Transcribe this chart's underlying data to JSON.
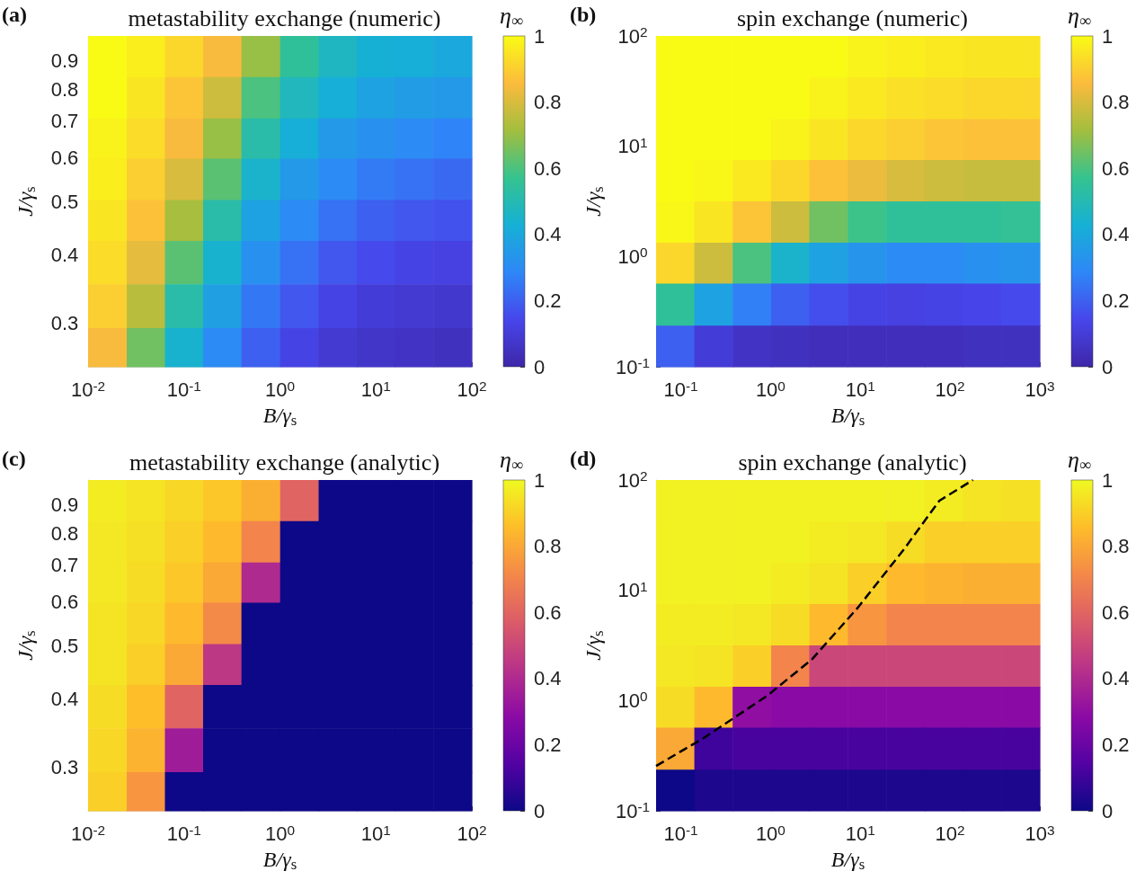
{
  "chart_data": [
    {
      "type": "heatmap",
      "title": "metastability exchange (numeric)",
      "xlabel": "B/γ$_{s}$",
      "ylabel": "J/γ$_{s}$",
      "clabel": "η$_{∞}$",
      "annotations": [
        "(a)"
      ],
      "log": "xy",
      "grid": false,
      "colors": [
        "#3e26a8",
        "#4746eb",
        "#2e87f7",
        "#16b0d5",
        "#35c38f",
        "#a3be3e",
        "#fcbb3d",
        "#f9fb15"
      ],
      "x": [
        0.016,
        0.04,
        0.1,
        0.25,
        0.63,
        1.6,
        4,
        10,
        25,
        63
      ],
      "y": [
        0.92,
        0.77,
        0.65,
        0.55,
        0.46,
        0.39,
        0.32,
        0.27
      ],
      "xlim": [
        0.01,
        100
      ],
      "xticks": [
        {
          "value": 0.01,
          "label": "10$^{-2}$"
        },
        {
          "value": 0.1,
          "label": "10$^{-1}$"
        },
        {
          "value": 1,
          "label": "10$^{0}$"
        },
        {
          "value": 10,
          "label": "10$^{1}$"
        },
        {
          "value": 100,
          "label": "10$^{2}$"
        }
      ],
      "ylim": [
        0.25,
        1
      ],
      "yticks": [
        0.3,
        0.4,
        0.5,
        0.6,
        0.7,
        0.8,
        0.9
      ],
      "clim": [
        0,
        1
      ],
      "cticks": [
        0,
        0.2,
        0.4,
        0.6,
        0.8,
        1
      ],
      "cells": [
        [
          1,
          0.97,
          0.92,
          0.85,
          0.7,
          0.55,
          0.47,
          0.43,
          0.42,
          0.4
        ],
        [
          1,
          0.95,
          0.88,
          0.78,
          0.6,
          0.48,
          0.42,
          0.38,
          0.36,
          0.35
        ],
        [
          0.98,
          0.93,
          0.85,
          0.7,
          0.52,
          0.42,
          0.35,
          0.32,
          0.3,
          0.28
        ],
        [
          0.97,
          0.9,
          0.8,
          0.62,
          0.45,
          0.35,
          0.3,
          0.26,
          0.24,
          0.22
        ],
        [
          0.95,
          0.87,
          0.72,
          0.52,
          0.38,
          0.3,
          0.24,
          0.2,
          0.18,
          0.17
        ],
        [
          0.93,
          0.82,
          0.62,
          0.44,
          0.32,
          0.24,
          0.18,
          0.15,
          0.13,
          0.12
        ],
        [
          0.9,
          0.75,
          0.52,
          0.37,
          0.25,
          0.18,
          0.13,
          0.1,
          0.09,
          0.08
        ],
        [
          0.85,
          0.65,
          0.44,
          0.3,
          0.2,
          0.13,
          0.09,
          0.07,
          0.06,
          0.05
        ]
      ]
    },
    {
      "type": "heatmap",
      "title": "spin exchange (numeric)",
      "xlabel": "B/γ$_{s}$",
      "ylabel": "J/γ$_{s}$",
      "clabel": "η$_{∞}$",
      "annotations": [
        "(b)"
      ],
      "log": "xy",
      "grid": false,
      "colors": [
        "#3e26a8",
        "#4746eb",
        "#2e87f7",
        "#16b0d5",
        "#35c38f",
        "#a3be3e",
        "#fcbb3d",
        "#f9fb15"
      ],
      "x": [
        0.087,
        0.23,
        0.62,
        1.66,
        4.4,
        11.9,
        32,
        85,
        229,
        611
      ],
      "y": [
        65,
        27,
        11.5,
        4.9,
        2.05,
        0.87,
        0.37,
        0.15
      ],
      "xlim": [
        0.053,
        1000
      ],
      "xticks": [
        {
          "value": 0.1,
          "label": "10$^{-1}$"
        },
        {
          "value": 1,
          "label": "10$^{0}$"
        },
        {
          "value": 10,
          "label": "10$^{1}$"
        },
        {
          "value": 100,
          "label": "10$^{2}$"
        },
        {
          "value": 1000,
          "label": "10$^{3}$"
        }
      ],
      "ylim": [
        0.1,
        100
      ],
      "yticks": [
        {
          "value": 0.1,
          "label": "10$^{-1}$"
        },
        {
          "value": 1,
          "label": "10$^{0}$"
        },
        {
          "value": 10,
          "label": "10$^{1}$"
        },
        {
          "value": 100,
          "label": "10$^{2}$"
        }
      ],
      "clim": [
        0,
        1
      ],
      "cticks": [
        0,
        0.2,
        0.4,
        0.6,
        0.8,
        1
      ],
      "cells": [
        [
          1,
          1,
          1,
          1,
          1,
          0.98,
          0.97,
          0.96,
          0.95,
          0.95
        ],
        [
          1,
          1,
          1,
          1,
          0.98,
          0.96,
          0.94,
          0.93,
          0.92,
          0.92
        ],
        [
          1,
          1,
          1,
          0.98,
          0.95,
          0.92,
          0.9,
          0.88,
          0.87,
          0.87
        ],
        [
          1,
          0.99,
          0.96,
          0.92,
          0.87,
          0.83,
          0.8,
          0.78,
          0.77,
          0.77
        ],
        [
          0.99,
          0.95,
          0.88,
          0.78,
          0.65,
          0.58,
          0.55,
          0.55,
          0.55,
          0.56
        ],
        [
          0.92,
          0.78,
          0.6,
          0.45,
          0.38,
          0.33,
          0.3,
          0.3,
          0.32,
          0.33
        ],
        [
          0.55,
          0.38,
          0.27,
          0.2,
          0.16,
          0.13,
          0.12,
          0.13,
          0.14,
          0.15
        ],
        [
          0.2,
          0.1,
          0.06,
          0.05,
          0.04,
          0.04,
          0.04,
          0.04,
          0.05,
          0.05
        ]
      ]
    },
    {
      "type": "heatmap",
      "title": "metastability exchange (analytic)",
      "xlabel": "B/γ$_{s}$",
      "ylabel": "J/γ$_{s}$",
      "clabel": "η$_{∞}$",
      "annotations": [
        "(c)"
      ],
      "log": "xy",
      "grid": false,
      "colors": [
        "#0d0887",
        "#5302a3",
        "#8b0aa5",
        "#b83289",
        "#db5c68",
        "#f48849",
        "#febd2a",
        "#f0f921"
      ],
      "x": [
        0.016,
        0.04,
        0.1,
        0.25,
        0.63,
        1.6,
        4,
        10,
        25,
        63
      ],
      "y": [
        0.92,
        0.77,
        0.65,
        0.55,
        0.46,
        0.39,
        0.32,
        0.27
      ],
      "xlim": [
        0.01,
        100
      ],
      "xticks": [
        {
          "value": 0.01,
          "label": "10$^{-2}$"
        },
        {
          "value": 0.1,
          "label": "10$^{-1}$"
        },
        {
          "value": 1,
          "label": "10$^{0}$"
        },
        {
          "value": 10,
          "label": "10$^{1}$"
        },
        {
          "value": 100,
          "label": "10$^{2}$"
        }
      ],
      "ylim": [
        0.25,
        1
      ],
      "yticks": [
        0.3,
        0.4,
        0.5,
        0.6,
        0.7,
        0.8,
        0.9
      ],
      "clim": [
        0,
        1
      ],
      "cticks": [
        0,
        0.2,
        0.4,
        0.6,
        0.8,
        1
      ],
      "cells": [
        [
          0.97,
          0.95,
          0.92,
          0.88,
          0.82,
          0.6,
          0,
          0,
          0,
          0
        ],
        [
          0.96,
          0.94,
          0.9,
          0.85,
          0.7,
          0,
          0,
          0,
          0,
          0
        ],
        [
          0.96,
          0.93,
          0.88,
          0.8,
          0.4,
          0,
          0,
          0,
          0,
          0
        ],
        [
          0.95,
          0.92,
          0.85,
          0.72,
          0,
          0,
          0,
          0,
          0,
          0
        ],
        [
          0.95,
          0.9,
          0.8,
          0.45,
          0,
          0,
          0,
          0,
          0,
          0
        ],
        [
          0.93,
          0.86,
          0.6,
          0,
          0,
          0,
          0,
          0,
          0,
          0
        ],
        [
          0.92,
          0.83,
          0.35,
          0,
          0,
          0,
          0,
          0,
          0,
          0
        ],
        [
          0.9,
          0.75,
          0,
          0,
          0,
          0,
          0,
          0,
          0,
          0
        ]
      ]
    },
    {
      "type": "heatmap",
      "title": "spin exchange (analytic)",
      "xlabel": "B/γ$_{s}$",
      "ylabel": "J/γ$_{s}$",
      "clabel": "η$_{∞}$",
      "annotations": [
        "(d)"
      ],
      "log": "xy",
      "grid": false,
      "colors": [
        "#0d0887",
        "#5302a3",
        "#8b0aa5",
        "#b83289",
        "#db5c68",
        "#f48849",
        "#febd2a",
        "#f0f921"
      ],
      "x": [
        0.087,
        0.23,
        0.62,
        1.66,
        4.4,
        11.9,
        32,
        85,
        229,
        611
      ],
      "y": [
        65,
        27,
        11.5,
        4.9,
        2.05,
        0.87,
        0.37,
        0.15
      ],
      "xlim": [
        0.053,
        1000
      ],
      "xticks": [
        {
          "value": 0.1,
          "label": "10$^{-1}$"
        },
        {
          "value": 1,
          "label": "10$^{0}$"
        },
        {
          "value": 10,
          "label": "10$^{1}$"
        },
        {
          "value": 100,
          "label": "10$^{2}$"
        },
        {
          "value": 1000,
          "label": "10$^{3}$"
        }
      ],
      "ylim": [
        0.1,
        100
      ],
      "yticks": [
        {
          "value": 0.1,
          "label": "10$^{-1}$"
        },
        {
          "value": 1,
          "label": "10$^{0}$"
        },
        {
          "value": 10,
          "label": "10$^{1}$"
        },
        {
          "value": 100,
          "label": "10$^{2}$"
        }
      ],
      "clim": [
        0,
        1
      ],
      "cticks": [
        0,
        0.2,
        0.4,
        0.6,
        0.8,
        1
      ],
      "cells": [
        [
          0.98,
          0.98,
          0.98,
          0.98,
          0.98,
          0.98,
          0.98,
          0.97,
          0.95,
          0.94
        ],
        [
          0.98,
          0.98,
          0.98,
          0.98,
          0.97,
          0.96,
          0.93,
          0.9,
          0.9,
          0.9
        ],
        [
          0.98,
          0.98,
          0.98,
          0.97,
          0.95,
          0.9,
          0.85,
          0.83,
          0.82,
          0.82
        ],
        [
          0.97,
          0.97,
          0.96,
          0.93,
          0.85,
          0.75,
          0.7,
          0.7,
          0.7,
          0.7
        ],
        [
          0.96,
          0.95,
          0.9,
          0.7,
          0.5,
          0.5,
          0.5,
          0.5,
          0.5,
          0.5
        ],
        [
          0.93,
          0.85,
          0.3,
          0.28,
          0.28,
          0.28,
          0.28,
          0.28,
          0.28,
          0.28
        ],
        [
          0.8,
          0.1,
          0.12,
          0.12,
          0.12,
          0.12,
          0.12,
          0.12,
          0.12,
          0.12
        ],
        [
          0,
          0.03,
          0.03,
          0.03,
          0.03,
          0.03,
          0.03,
          0.03,
          0.03,
          0.03
        ]
      ],
      "series": [
        {
          "type": "line",
          "color": "#000000",
          "line_style": "dashed",
          "marker": "none",
          "x": [
            0.053,
            0.179,
            0.91,
            2.9,
            9.3,
            30,
            76,
            180
          ],
          "values": [
            0.255,
            0.456,
            1.1,
            2.37,
            6.9,
            23,
            65,
            100
          ]
        }
      ]
    }
  ]
}
